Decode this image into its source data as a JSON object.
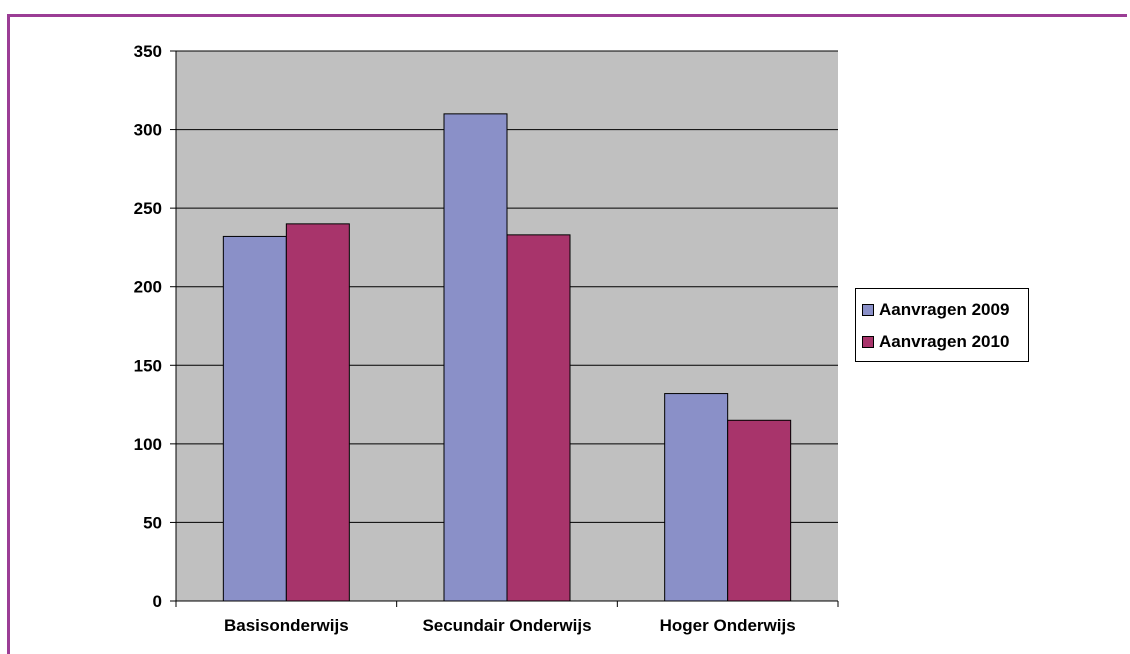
{
  "chart_data": {
    "type": "bar",
    "title": "",
    "xlabel": "",
    "ylabel": "",
    "categories": [
      "Basisonderwijs",
      "Secundair Onderwijs",
      "Hoger Onderwijs"
    ],
    "series": [
      {
        "name": "Aanvragen 2009",
        "values": [
          232,
          310,
          132
        ],
        "color": "#8a90c8"
      },
      {
        "name": "Aanvragen 2010",
        "values": [
          240,
          233,
          115
        ],
        "color": "#a8346b"
      }
    ],
    "ylim": [
      0,
      350
    ],
    "yticks": [
      0,
      50,
      100,
      150,
      200,
      250,
      300,
      350
    ],
    "grid": true,
    "plot_background": "#c0c0c0",
    "legend_position": "right"
  }
}
